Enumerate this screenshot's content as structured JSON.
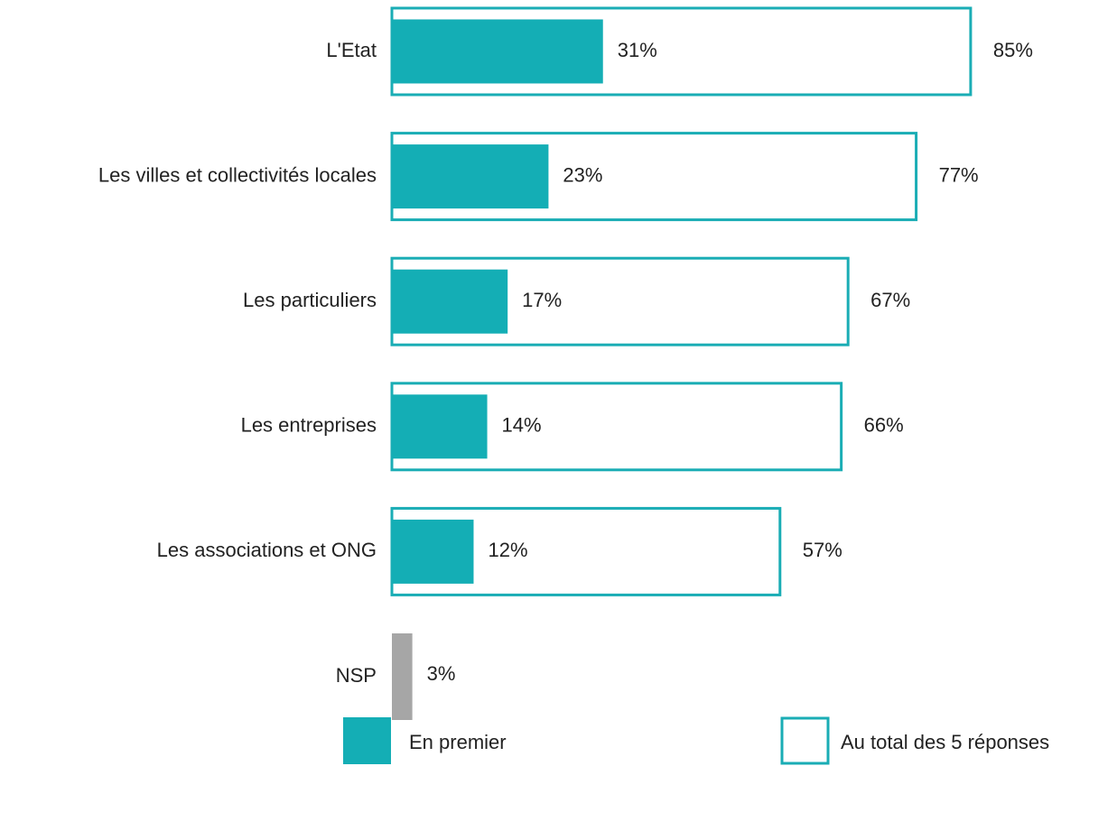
{
  "chart_data": {
    "type": "hbar",
    "categories": [
      "L'Etat",
      "Les villes et collectivités locales",
      "Les particuliers",
      "Les entreprises",
      "Les associations et ONG",
      "NSP"
    ],
    "series": [
      {
        "name": "En premier",
        "color": "#14aeb5",
        "colors": [
          "#14aeb5",
          "#14aeb5",
          "#14aeb5",
          "#14aeb5",
          "#14aeb5",
          "#a6a6a6"
        ],
        "values": [
          31,
          23,
          17,
          14,
          12,
          3
        ],
        "value_labels": [
          "31%",
          "23%",
          "17%",
          "14%",
          "12%",
          "3%"
        ]
      },
      {
        "name": "Au total des 5 réponses",
        "color": "#1aadb5",
        "style": "outline",
        "values": [
          85,
          77,
          67,
          66,
          57,
          null
        ],
        "value_labels": [
          "85%",
          "77%",
          "67%",
          "66%",
          "57%",
          null
        ]
      }
    ],
    "xlim": [
      0,
      100
    ],
    "legend": "bottom"
  }
}
